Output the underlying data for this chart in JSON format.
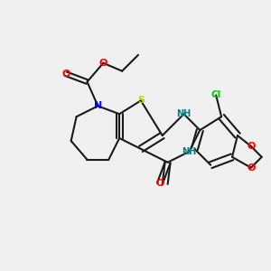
{
  "background_color": "#f0f0f0",
  "bond_color": "#1a1a1a",
  "atom_colors": {
    "S": "#cccc00",
    "N": "#0000ff",
    "O": "#ff0000",
    "Cl": "#00cc00",
    "H_label": "#008080",
    "C": "#1a1a1a"
  },
  "figure_size": [
    3.0,
    3.0
  ],
  "dpi": 100
}
